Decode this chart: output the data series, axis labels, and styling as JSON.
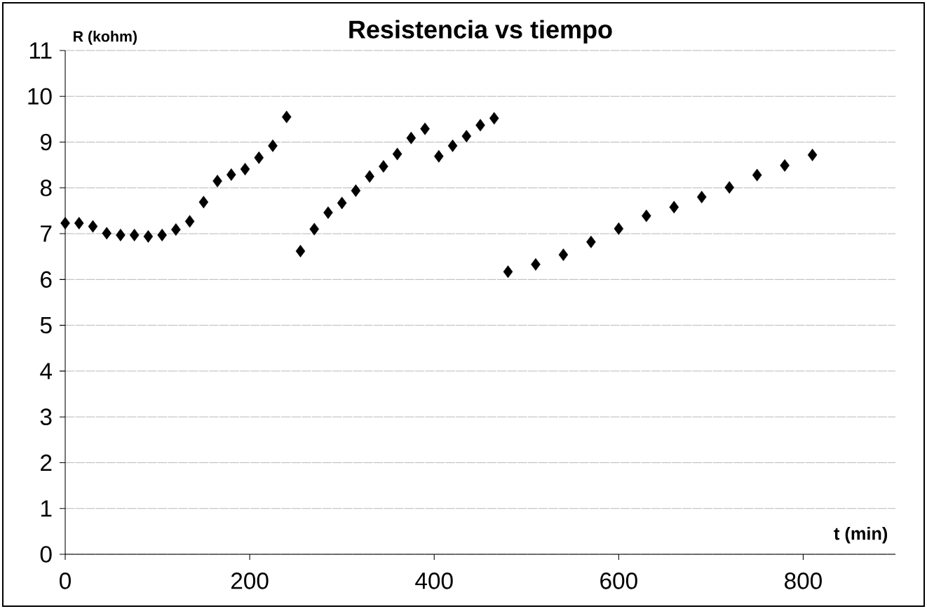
{
  "chart_data": {
    "type": "scatter",
    "title": "Resistencia  vs  tiempo",
    "xlabel": "t (min)",
    "ylabel": "R (kohm)",
    "x": [
      0,
      15,
      30,
      45,
      60,
      75,
      90,
      105,
      120,
      135,
      150,
      165,
      180,
      195,
      210,
      225,
      240,
      255,
      270,
      285,
      300,
      315,
      330,
      345,
      360,
      375,
      390,
      405,
      420,
      435,
      450,
      465,
      480,
      510,
      540,
      570,
      600,
      630,
      660,
      690,
      720,
      750,
      780,
      810
    ],
    "values": [
      7.23,
      7.23,
      7.16,
      7.01,
      6.97,
      6.97,
      6.94,
      6.97,
      7.09,
      7.27,
      7.69,
      8.15,
      8.29,
      8.41,
      8.66,
      8.92,
      9.55,
      6.62,
      7.1,
      7.46,
      7.67,
      7.94,
      8.25,
      8.47,
      8.74,
      9.09,
      9.29,
      8.69,
      8.92,
      9.13,
      9.37,
      9.52,
      6.17,
      6.33,
      6.54,
      6.82,
      7.11,
      7.39,
      7.58,
      7.8,
      8.01,
      8.28,
      8.49,
      8.72
    ],
    "color": "#000000",
    "marker": "diamond",
    "grid": "y",
    "xlim": [
      0,
      900
    ],
    "ylim": [
      0,
      11
    ],
    "xticks": [
      0,
      200,
      400,
      600,
      800
    ],
    "yticks": [
      0,
      1,
      2,
      3,
      4,
      5,
      6,
      7,
      8,
      9,
      10,
      11
    ]
  }
}
